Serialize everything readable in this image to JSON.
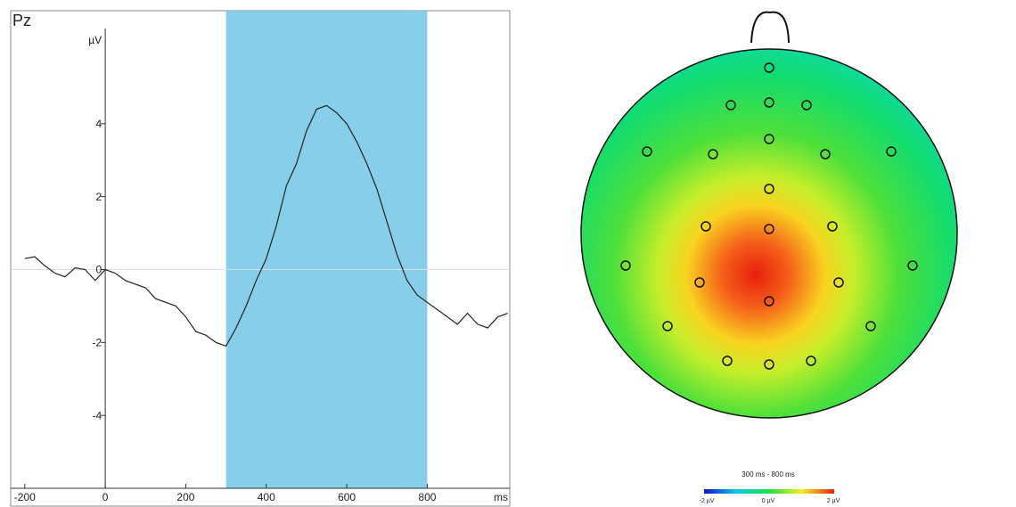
{
  "chart_data": {
    "type": "line",
    "title": "Pz",
    "xlabel": "ms",
    "ylabel": "µV",
    "x": [
      -200,
      -175,
      -150,
      -125,
      -100,
      -75,
      -50,
      -25,
      0,
      25,
      50,
      75,
      100,
      125,
      150,
      175,
      200,
      225,
      250,
      275,
      300,
      325,
      350,
      375,
      400,
      425,
      450,
      475,
      500,
      525,
      550,
      575,
      600,
      625,
      650,
      675,
      700,
      725,
      750,
      775,
      800,
      825,
      850,
      875,
      900,
      925,
      950,
      975,
      1000
    ],
    "values": [
      0.3,
      0.35,
      0.1,
      -0.1,
      -0.2,
      0.05,
      0.0,
      -0.3,
      0.0,
      -0.1,
      -0.3,
      -0.4,
      -0.5,
      -0.8,
      -0.9,
      -1.0,
      -1.3,
      -1.7,
      -1.8,
      -2.0,
      -2.1,
      -1.6,
      -1.0,
      -0.3,
      0.3,
      1.2,
      2.3,
      2.9,
      3.8,
      4.4,
      4.5,
      4.3,
      4.0,
      3.5,
      2.9,
      2.2,
      1.3,
      0.4,
      -0.3,
      -0.7,
      -0.9,
      -1.1,
      -1.3,
      -1.5,
      -1.2,
      -1.5,
      -1.6,
      -1.3,
      -1.2
    ],
    "color": "#222222",
    "highlight": [
      300,
      800
    ],
    "highlight_color": "#87ceea",
    "xlim": [
      -235,
      1005
    ],
    "ylim": [
      -6,
      7.1
    ],
    "xticks": [
      -200,
      0,
      200,
      400,
      600,
      800
    ],
    "yticks": [
      -4,
      -2,
      0,
      2,
      4
    ],
    "zero_line": true
  },
  "topomap": {
    "title": "300 ms - 800 ms",
    "colorbar_labels": [
      "-2 µV",
      "0 µV",
      "2 µV"
    ]
  }
}
